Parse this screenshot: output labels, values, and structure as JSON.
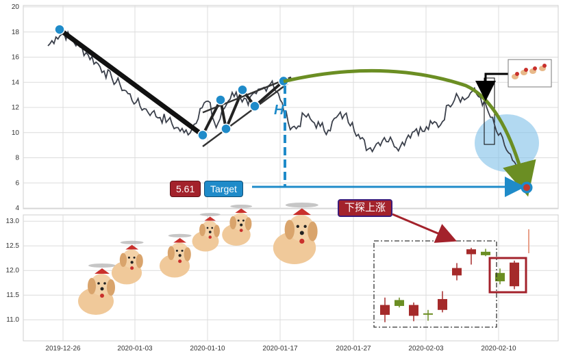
{
  "chart_data": [
    {
      "type": "line",
      "grid": true,
      "ylim": [
        4,
        20
      ],
      "yticks": [
        "4",
        "6",
        "8",
        "10",
        "12",
        "14",
        "16",
        "18",
        "20"
      ],
      "series": [
        {
          "values": [
            16.9,
            17.6,
            17.9,
            17.4,
            16.8,
            16.2,
            15.6,
            14.9,
            14.3,
            13.8,
            13.1,
            12.4,
            11.9,
            11.6,
            11.2,
            11.0,
            10.4,
            10.0,
            10.3,
            11.9,
            12.5,
            10.4,
            11.9,
            13.2,
            12.8,
            12.2,
            13.1,
            13.6,
            14.1,
            12.6,
            10.8,
            10.3,
            11.4,
            10.9,
            10.5,
            10.2,
            11.2,
            11.4,
            10.8,
            9.5,
            8.7,
            9.1,
            9.6,
            9.3,
            8.9,
            9.8,
            10.3,
            10.1,
            10.7,
            10.6,
            12.2,
            13.1,
            12.6,
            13.3,
            12.8,
            11.6,
            10.1,
            9.0,
            7.8,
            6.2
          ]
        }
      ],
      "pattern_points": [
        18.2,
        9.8,
        12.6,
        10.3,
        13.4,
        12.1,
        14.1
      ],
      "pattern_label": "H",
      "target_label": "Target",
      "target_value": "5.61",
      "target_level": 5.61
    },
    {
      "type": "bar",
      "subtype": "candlestick",
      "grid": true,
      "ylim": [
        10.6,
        13.1
      ],
      "yticks": [
        "11.0",
        "11.5",
        "12.0",
        "12.5",
        "13.0"
      ],
      "xticks": [
        "2019-12-26",
        "2020-01-03",
        "2020-01-10",
        "2020-01-17",
        "2020-01-27",
        "2020-02-03",
        "2020-02-10"
      ],
      "candles": [
        {
          "open": 11.1,
          "close": 11.3,
          "high": 11.45,
          "low": 10.95
        },
        {
          "open": 11.4,
          "close": 11.28,
          "high": 11.45,
          "low": 11.25
        },
        {
          "open": 11.08,
          "close": 11.3,
          "high": 11.35,
          "low": 10.97
        },
        {
          "open": 11.13,
          "close": 11.12,
          "high": 11.2,
          "low": 10.98
        },
        {
          "open": 11.2,
          "close": 11.42,
          "high": 11.58,
          "low": 11.15
        },
        {
          "open": 11.9,
          "close": 12.05,
          "high": 12.15,
          "low": 11.8
        },
        {
          "open": 12.33,
          "close": 12.43,
          "high": 12.46,
          "low": 12.12
        },
        {
          "open": 12.38,
          "close": 12.31,
          "high": 12.44,
          "low": 12.29
        },
        {
          "open": 11.95,
          "close": 11.78,
          "high": 12.04,
          "low": 11.72
        },
        {
          "open": 11.68,
          "close": 12.16,
          "high": 12.2,
          "low": 11.62
        }
      ],
      "annotation": "下探上涨"
    }
  ],
  "colors": {
    "up": "#a52a2a",
    "down": "#6b8e23",
    "accent_blue": "#1f8bc9",
    "pattern_arc": "#6b8e23",
    "label_red": "#a3222b"
  }
}
